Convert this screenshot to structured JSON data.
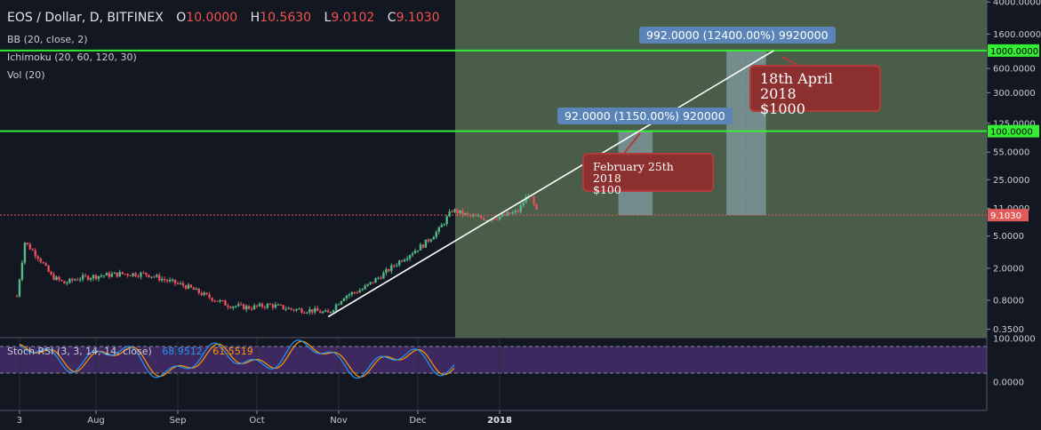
{
  "header": {
    "symbol": "EOS / Dollar, D, BITFINEX",
    "o_label": "O",
    "o_value": "10.0000",
    "h_label": "H",
    "h_value": "10.5630",
    "l_label": "L",
    "l_value": "9.0102",
    "c_label": "C",
    "c_value": "9.1030"
  },
  "indicators": {
    "bb": "BB (20, close, 2)",
    "ichimoku": "Ichimoku (20, 60, 120, 30)",
    "vol": "Vol (20)"
  },
  "stoch_rsi": {
    "label": "Stoch RSI (3, 3, 14, 14, close)",
    "k_value": "68.9512",
    "d_value": "61.5519"
  },
  "annotations": {
    "box1": "92.0000 (1150.00%) 920000",
    "box2": "992.0000 (12400.00%) 9920000",
    "note1_line1": "February 25th 2018",
    "note1_line2": "$100",
    "note2_line1": "18th April 2018",
    "note2_line2": "$1000"
  },
  "colors": {
    "background": "#131722",
    "projection_zone": "#4a5d48",
    "green_line": "#33ee33",
    "up_candle": "#53b987",
    "down_candle": "#eb4d5c",
    "price_label": "#e35a5a",
    "note_fill": "#8b2f2f",
    "info_box": "#5b85b8"
  },
  "chart_data": {
    "type": "candlestick",
    "scale": "log",
    "price_axis": {
      "ticks": [
        "4000.0000",
        "1600.0000",
        "600.0000",
        "300.0000",
        "125.0000",
        "55.0000",
        "25.0000",
        "11.0000",
        "5.0000",
        "2.0000",
        "0.8000",
        "0.3500"
      ],
      "tick_values": [
        4000,
        1600,
        600,
        300,
        125,
        55,
        25,
        11,
        5,
        2,
        0.8,
        0.35
      ],
      "ylim": [
        0.3,
        4000
      ]
    },
    "time_axis": {
      "labels": [
        "3",
        "Aug",
        "Sep",
        "Oct",
        "Nov",
        "Dec",
        "2018"
      ]
    },
    "horizontal_lines": [
      {
        "value": 1000,
        "label": "1000.0000"
      },
      {
        "value": 100,
        "label": "100.0000"
      }
    ],
    "last_price": {
      "value": 9.103,
      "label": "9.1030"
    },
    "trendline": {
      "from": {
        "date": "2017-10-28",
        "price": 0.5
      },
      "to": {
        "date": "2018-04-15",
        "price": 1000
      }
    },
    "candles_close": [
      {
        "date": "2017-07-02",
        "close": 0.9
      },
      {
        "date": "2017-07-05",
        "close": 4.2
      },
      {
        "date": "2017-07-10",
        "close": 2.8
      },
      {
        "date": "2017-07-15",
        "close": 1.6
      },
      {
        "date": "2017-07-20",
        "close": 1.3
      },
      {
        "date": "2017-07-25",
        "close": 1.5
      },
      {
        "date": "2017-08-01",
        "close": 1.6
      },
      {
        "date": "2017-08-10",
        "close": 1.7
      },
      {
        "date": "2017-08-20",
        "close": 1.7
      },
      {
        "date": "2017-08-28",
        "close": 1.4
      },
      {
        "date": "2017-09-04",
        "close": 1.2
      },
      {
        "date": "2017-09-12",
        "close": 0.9
      },
      {
        "date": "2017-09-20",
        "close": 0.7
      },
      {
        "date": "2017-09-28",
        "close": 0.65
      },
      {
        "date": "2017-10-06",
        "close": 0.7
      },
      {
        "date": "2017-10-14",
        "close": 0.62
      },
      {
        "date": "2017-10-22",
        "close": 0.6
      },
      {
        "date": "2017-10-28",
        "close": 0.55
      },
      {
        "date": "2017-11-03",
        "close": 0.9
      },
      {
        "date": "2017-11-10",
        "close": 1.1
      },
      {
        "date": "2017-11-18",
        "close": 1.7
      },
      {
        "date": "2017-11-25",
        "close": 2.6
      },
      {
        "date": "2017-12-03",
        "close": 3.9
      },
      {
        "date": "2017-12-09",
        "close": 6.0
      },
      {
        "date": "2017-12-14",
        "close": 10.5
      },
      {
        "date": "2017-12-20",
        "close": 9.0
      },
      {
        "date": "2017-12-27",
        "close": 8.2
      },
      {
        "date": "2018-01-03",
        "close": 9.0
      },
      {
        "date": "2018-01-08",
        "close": 10.2
      },
      {
        "date": "2018-01-12",
        "close": 17.0
      },
      {
        "date": "2018-01-15",
        "close": 10.0
      },
      {
        "date": "2018-01-16",
        "close": 9.103
      }
    ],
    "stoch_rsi_axis": {
      "ticks": [
        "100.0000",
        "0.0000"
      ],
      "tick_values": [
        100,
        0
      ]
    }
  }
}
